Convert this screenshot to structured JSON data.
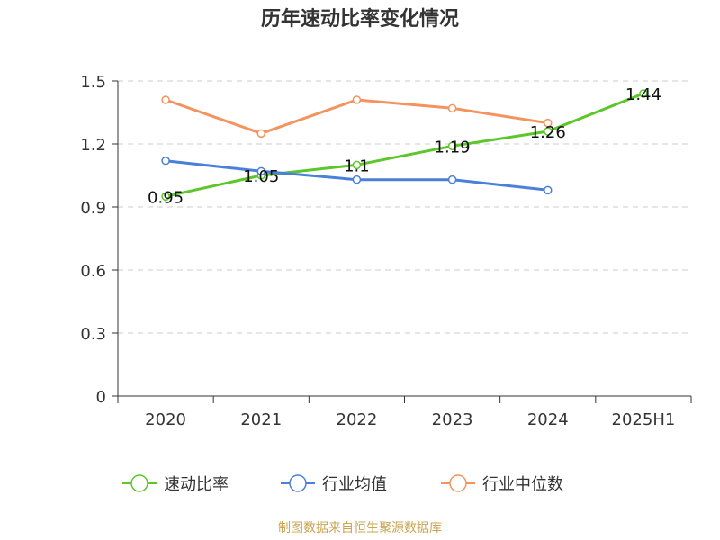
{
  "title": "历年速动比率变化情况",
  "source": "制图数据来自恒生聚源数据库",
  "chart_data": {
    "type": "line",
    "title": "历年速动比率变化情况",
    "categories": [
      "2020",
      "2021",
      "2022",
      "2023",
      "2024",
      "2025H1"
    ],
    "ylim": [
      0,
      1.5
    ],
    "yticks": [
      "0",
      "0.3",
      "0.6",
      "0.9",
      "1.2",
      "1.5"
    ],
    "grid": true,
    "legend_position": "bottom",
    "series": [
      {
        "name": "速动比率",
        "color": "#5cc62a",
        "values": [
          0.95,
          1.05,
          1.1,
          1.19,
          1.26,
          1.44
        ],
        "labels": [
          "0.95",
          "1.05",
          "1.1",
          "1.19",
          "1.26",
          "1.44"
        ],
        "show_labels": true
      },
      {
        "name": "行业均值",
        "color": "#4a80d9",
        "values": [
          1.12,
          1.07,
          1.03,
          1.03,
          0.98,
          null
        ],
        "show_labels": false
      },
      {
        "name": "行业中位数",
        "color": "#f5935e",
        "values": [
          1.41,
          1.25,
          1.41,
          1.37,
          1.3,
          null
        ],
        "show_labels": false
      }
    ]
  }
}
